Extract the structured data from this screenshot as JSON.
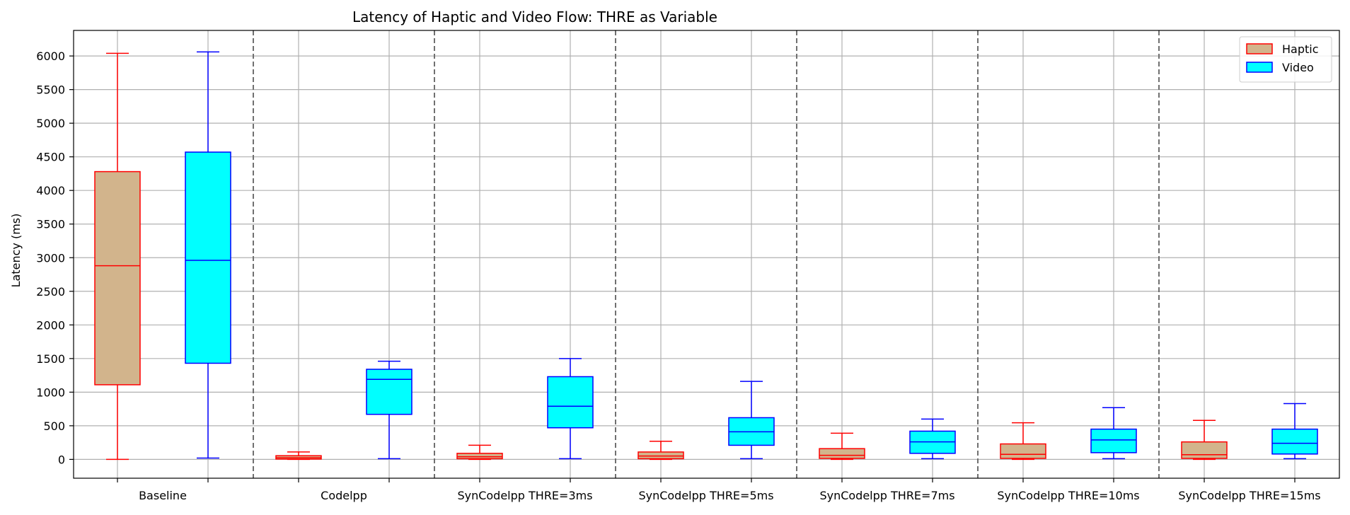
{
  "chart_data": {
    "type": "box",
    "title": "Latency of Haptic and Video Flow: THRE as Variable",
    "xlabel": "",
    "ylabel": "Latency (ms)",
    "ylim": [
      -280,
      6380
    ],
    "yticks": [
      0,
      500,
      1000,
      1500,
      2000,
      2500,
      3000,
      3500,
      4000,
      4500,
      5000,
      5500,
      6000
    ],
    "grid": true,
    "legend_position": "top-right",
    "categories": [
      "Baseline",
      "Codelpp",
      "SynCodelpp THRE=3ms",
      "SynCodelpp THRE=5ms",
      "SynCodelpp THRE=7ms",
      "SynCodelpp THRE=10ms",
      "SynCodelpp THRE=15ms"
    ],
    "series": [
      {
        "name": "Haptic",
        "fill": "#d2b48c",
        "stroke": "#ff0000",
        "boxes": [
          {
            "whislo": 0,
            "q1": 1110,
            "med": 2880,
            "q3": 4280,
            "whishi": 6040
          },
          {
            "whislo": 0,
            "q1": 5,
            "med": 25,
            "q3": 55,
            "whishi": 110
          },
          {
            "whislo": 0,
            "q1": 10,
            "med": 40,
            "q3": 90,
            "whishi": 210
          },
          {
            "whislo": 0,
            "q1": 10,
            "med": 50,
            "q3": 110,
            "whishi": 270
          },
          {
            "whislo": 0,
            "q1": 15,
            "med": 60,
            "q3": 160,
            "whishi": 390
          },
          {
            "whislo": 0,
            "q1": 15,
            "med": 75,
            "q3": 230,
            "whishi": 545
          },
          {
            "whislo": 0,
            "q1": 15,
            "med": 70,
            "q3": 260,
            "whishi": 580
          }
        ]
      },
      {
        "name": "Video",
        "fill": "#00ffff",
        "stroke": "#0000ff",
        "boxes": [
          {
            "whislo": 20,
            "q1": 1430,
            "med": 2960,
            "q3": 4570,
            "whishi": 6060
          },
          {
            "whislo": 10,
            "q1": 670,
            "med": 1190,
            "q3": 1340,
            "whishi": 1460
          },
          {
            "whislo": 10,
            "q1": 470,
            "med": 790,
            "q3": 1230,
            "whishi": 1500
          },
          {
            "whislo": 10,
            "q1": 210,
            "med": 410,
            "q3": 620,
            "whishi": 1160
          },
          {
            "whislo": 10,
            "q1": 90,
            "med": 260,
            "q3": 420,
            "whishi": 600
          },
          {
            "whislo": 10,
            "q1": 100,
            "med": 290,
            "q3": 450,
            "whishi": 770
          },
          {
            "whislo": 10,
            "q1": 80,
            "med": 240,
            "q3": 450,
            "whishi": 830
          }
        ]
      }
    ],
    "legend": [
      {
        "label": "Haptic",
        "fill": "#d2b48c",
        "stroke": "#ff0000"
      },
      {
        "label": "Video",
        "fill": "#00ffff",
        "stroke": "#0000ff"
      }
    ]
  }
}
